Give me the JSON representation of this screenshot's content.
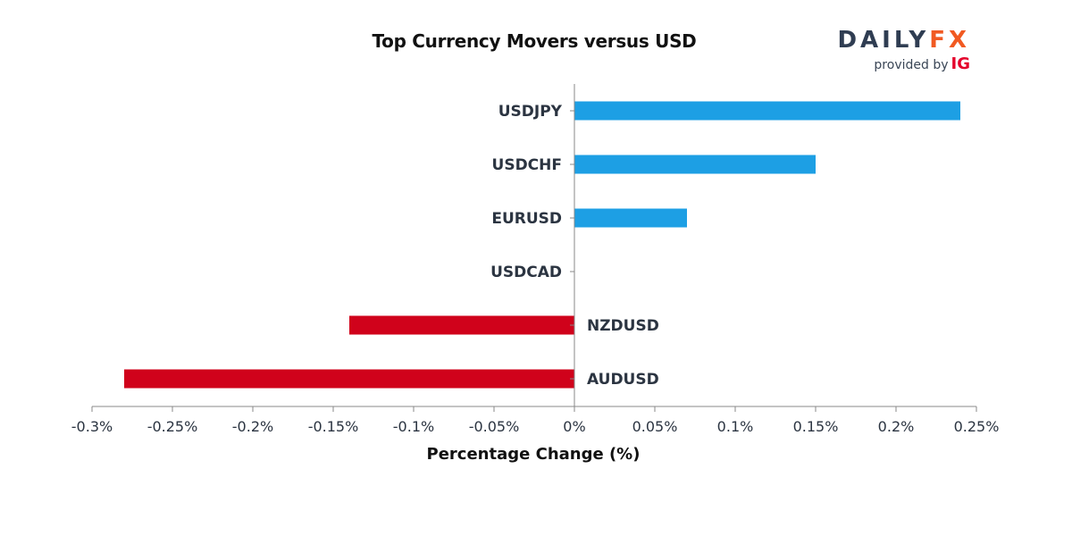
{
  "brand": {
    "name_part1": "DAILY",
    "name_part2": "FX",
    "provided_by": "provided by",
    "partner": "IG"
  },
  "colors": {
    "positive": "#1d9fe4",
    "negative": "#d0021b",
    "axis": "#888888",
    "text": "#2b3441"
  },
  "chart_data": {
    "type": "bar",
    "orientation": "horizontal",
    "title": "Top Currency Movers versus USD",
    "xlabel": "Percentage Change (%)",
    "ylabel": "",
    "xlim": [
      -0.3,
      0.25
    ],
    "categories": [
      "USDJPY",
      "USDCHF",
      "EURUSD",
      "USDCAD",
      "NZDUSD",
      "AUDUSD"
    ],
    "values": [
      0.24,
      0.15,
      0.07,
      0.0,
      -0.14,
      -0.28
    ],
    "ticks": [
      -0.3,
      -0.25,
      -0.2,
      -0.15,
      -0.1,
      -0.05,
      0,
      0.05,
      0.1,
      0.15,
      0.2,
      0.25
    ],
    "tick_labels": [
      "-0.3%",
      "-0.25%",
      "-0.2%",
      "-0.15%",
      "-0.1%",
      "-0.05%",
      "0%",
      "0.05%",
      "0.1%",
      "0.15%",
      "0.2%",
      "0.25%"
    ],
    "grid": false,
    "legend": "none"
  }
}
